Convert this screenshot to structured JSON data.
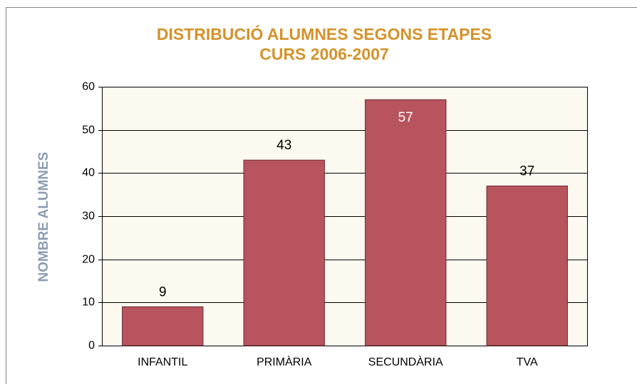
{
  "chart_data": {
    "type": "bar",
    "title": "DISTRIBUCIÓ ALUMNES SEGONS ETAPES",
    "subtitle": "CURS 2006-2007",
    "y_label": "NOMBRE ALUMNES",
    "categories": [
      "INFANTIL",
      "PRIMÀRIA",
      "SECUNDÀRIA",
      "TVA"
    ],
    "values": [
      9,
      43,
      57,
      37
    ],
    "color": "#b8545e",
    "ylim": [
      0,
      60
    ],
    "yticks": [
      0,
      10,
      20,
      30,
      40,
      50,
      60
    ],
    "grid": true
  }
}
